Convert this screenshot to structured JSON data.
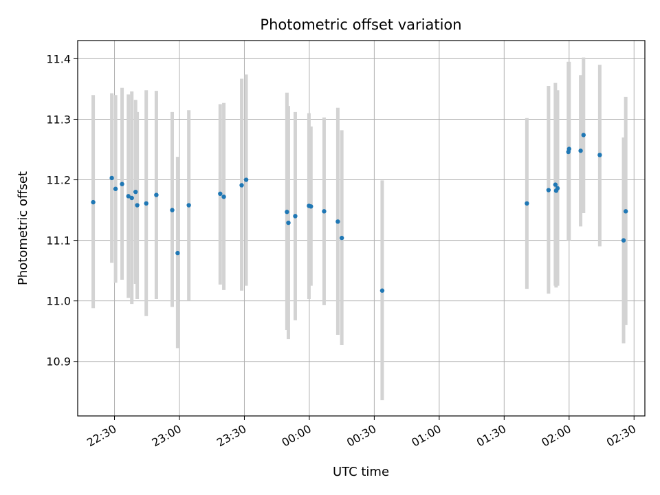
{
  "chart_data": {
    "type": "scatter",
    "title": "Photometric offset variation",
    "xlabel": "UTC time",
    "ylabel": "Photometric offset",
    "grid": true,
    "legend": "none",
    "x_axis": {
      "unit": "UTC time",
      "start": "22:13",
      "end": "02:35",
      "ticks": [
        "22:30",
        "23:00",
        "23:30",
        "00:00",
        "00:30",
        "01:00",
        "01:30",
        "02:00",
        "02:30"
      ]
    },
    "y_axis": {
      "range": [
        10.81,
        11.43
      ],
      "ticks": [
        "10.9",
        "11.0",
        "11.1",
        "11.2",
        "11.3",
        "11.4"
      ]
    },
    "colors": {
      "points": "#1f77b4",
      "error_bars": "#d3d3d3",
      "grid": "#b0b0b0"
    },
    "points": [
      {
        "time": "22:20:10",
        "y": 11.163,
        "ylow": 10.988,
        "yhigh": 11.34
      },
      {
        "time": "22:28:45",
        "y": 11.203,
        "ylow": 11.063,
        "yhigh": 11.343
      },
      {
        "time": "22:30:30",
        "y": 11.185,
        "ylow": 11.03,
        "yhigh": 11.34
      },
      {
        "time": "22:33:30",
        "y": 11.193,
        "ylow": 11.035,
        "yhigh": 11.352
      },
      {
        "time": "22:36:25",
        "y": 11.173,
        "ylow": 11.005,
        "yhigh": 11.341
      },
      {
        "time": "22:38:00",
        "y": 11.17,
        "ylow": 10.995,
        "yhigh": 11.346
      },
      {
        "time": "22:39:45",
        "y": 11.18,
        "ylow": 11.028,
        "yhigh": 11.332
      },
      {
        "time": "22:40:30",
        "y": 11.158,
        "ylow": 11.003,
        "yhigh": 11.312
      },
      {
        "time": "22:44:40",
        "y": 11.161,
        "ylow": 10.975,
        "yhigh": 11.348
      },
      {
        "time": "22:49:20",
        "y": 11.175,
        "ylow": 11.003,
        "yhigh": 11.347
      },
      {
        "time": "22:56:40",
        "y": 11.15,
        "ylow": 10.99,
        "yhigh": 11.312
      },
      {
        "time": "22:59:10",
        "y": 11.079,
        "ylow": 10.922,
        "yhigh": 11.238
      },
      {
        "time": "23:04:20",
        "y": 11.158,
        "ylow": 11.0,
        "yhigh": 11.315
      },
      {
        "time": "23:18:50",
        "y": 11.177,
        "ylow": 11.027,
        "yhigh": 11.325
      },
      {
        "time": "23:20:30",
        "y": 11.172,
        "ylow": 11.018,
        "yhigh": 11.327
      },
      {
        "time": "23:28:45",
        "y": 11.191,
        "ylow": 11.017,
        "yhigh": 11.367
      },
      {
        "time": "23:30:50",
        "y": 11.2,
        "ylow": 11.025,
        "yhigh": 11.374
      },
      {
        "time": "23:49:40",
        "y": 11.147,
        "ylow": 10.952,
        "yhigh": 11.344
      },
      {
        "time": "23:50:20",
        "y": 11.129,
        "ylow": 10.937,
        "yhigh": 11.322
      },
      {
        "time": "23:53:30",
        "y": 11.14,
        "ylow": 10.968,
        "yhigh": 11.312
      },
      {
        "time": "23:59:50",
        "y": 11.157,
        "ylow": 11.003,
        "yhigh": 11.31
      },
      {
        "time": "00:00:45",
        "y": 11.156,
        "ylow": 11.025,
        "yhigh": 11.288
      },
      {
        "time": "00:06:50",
        "y": 11.148,
        "ylow": 10.993,
        "yhigh": 11.303
      },
      {
        "time": "00:13:10",
        "y": 11.131,
        "ylow": 10.944,
        "yhigh": 11.319
      },
      {
        "time": "00:15:00",
        "y": 11.104,
        "ylow": 10.927,
        "yhigh": 11.282
      },
      {
        "time": "00:33:40",
        "y": 11.017,
        "ylow": 10.836,
        "yhigh": 11.199
      },
      {
        "time": "01:40:30",
        "y": 11.161,
        "ylow": 11.02,
        "yhigh": 11.302
      },
      {
        "time": "01:50:30",
        "y": 11.183,
        "ylow": 11.012,
        "yhigh": 11.355
      },
      {
        "time": "01:53:40",
        "y": 11.192,
        "ylow": 11.025,
        "yhigh": 11.36
      },
      {
        "time": "01:54:00",
        "y": 11.182,
        "ylow": 11.022,
        "yhigh": 11.343
      },
      {
        "time": "01:54:40",
        "y": 11.186,
        "ylow": 11.025,
        "yhigh": 11.348
      },
      {
        "time": "01:59:40",
        "y": 11.246,
        "ylow": 11.1,
        "yhigh": 11.395
      },
      {
        "time": "02:00:00",
        "y": 11.251,
        "ylow": 11.1,
        "yhigh": 11.395
      },
      {
        "time": "02:05:20",
        "y": 11.248,
        "ylow": 11.123,
        "yhigh": 11.373
      },
      {
        "time": "02:06:40",
        "y": 11.274,
        "ylow": 11.145,
        "yhigh": 11.402
      },
      {
        "time": "02:14:10",
        "y": 11.241,
        "ylow": 11.09,
        "yhigh": 11.39
      },
      {
        "time": "02:25:10",
        "y": 11.1,
        "ylow": 10.93,
        "yhigh": 11.27
      },
      {
        "time": "02:26:10",
        "y": 11.148,
        "ylow": 10.96,
        "yhigh": 11.337
      }
    ]
  }
}
